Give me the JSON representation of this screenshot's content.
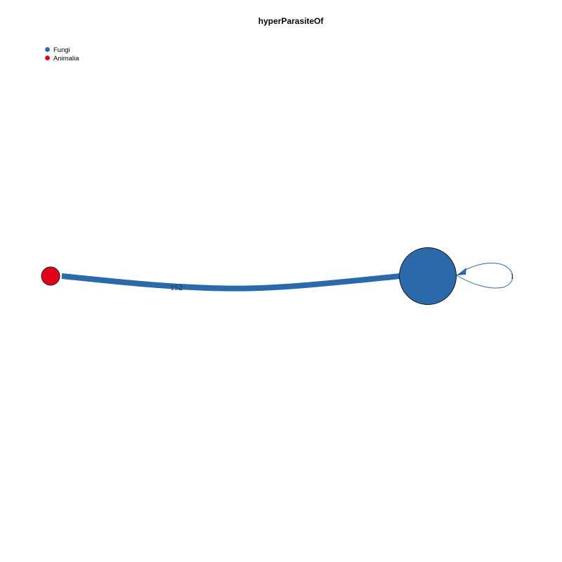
{
  "title": "hyperParasiteOf",
  "legend": [
    {
      "label": "Fungi",
      "color": "#2b6aaa"
    },
    {
      "label": "Animalia",
      "color": "#e3001b"
    }
  ],
  "graph": {
    "nodes": [
      {
        "id": "fungi",
        "kingdom": "Fungi",
        "color": "#2b6aaa"
      },
      {
        "id": "animalia",
        "kingdom": "Animalia",
        "color": "#e3001b"
      }
    ],
    "edges": [
      {
        "source": "fungi",
        "target": "animalia",
        "weight": 152,
        "label": "152",
        "color": "#2b6aaa"
      },
      {
        "source": "fungi",
        "target": "fungi",
        "weight": 1,
        "label": "1",
        "color": "#2b6aaa"
      }
    ]
  }
}
